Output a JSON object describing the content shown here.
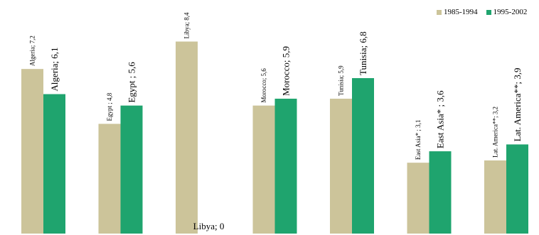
{
  "chart_data": {
    "type": "bar",
    "categories": [
      "Algeria",
      "Egypt",
      "Libya",
      "Morocco",
      "Tunisia",
      "East Asia*",
      "Lat. America**"
    ],
    "series": [
      {
        "name": "1985-1994",
        "color": "#ccc49a",
        "values": [
          7.2,
          4.8,
          8.4,
          5.6,
          5.9,
          3.1,
          3.2
        ],
        "labels": [
          "Algeria; 7,2",
          "Egypt ; 4,8",
          "Libya; 8,4",
          "Morocco; 5,6",
          "Tunisia; 5,9",
          "East Asia* ; 3,1",
          "Lat. America**; 3,2"
        ]
      },
      {
        "name": "1995-2002",
        "color": "#1fa46e",
        "values": [
          6.1,
          5.6,
          0,
          5.9,
          6.8,
          3.6,
          3.9
        ],
        "labels": [
          "Algeria; 6,1",
          "Egypt ; 5,6",
          "Libya; 0",
          "Morocco; 5,9",
          "Tunisia; 6,8",
          "East Asia* ; 3,6",
          "Lat. America**; 3,9"
        ]
      }
    ],
    "ylim": [
      0,
      9.5
    ],
    "grid": false,
    "legend_position": "top-right"
  }
}
